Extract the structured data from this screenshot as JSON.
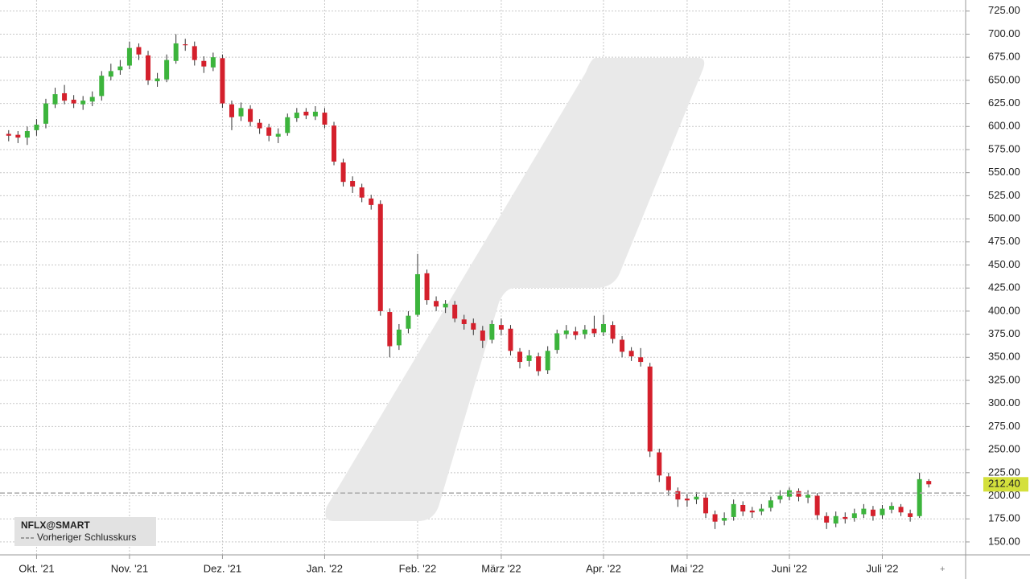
{
  "chart_data": {
    "type": "candlestick",
    "symbol": "NFLX@SMART",
    "legend_label": "Vorheriger Schlusskurs",
    "up_color": "#3cb43c",
    "down_color": "#d4202c",
    "grid": true,
    "previous_close": 203,
    "price_marker": {
      "value": 212.4,
      "label": "212.40"
    },
    "ylim": [
      136,
      737
    ],
    "yticks": [
      {
        "value": 150,
        "label": "150.00"
      },
      {
        "value": 175,
        "label": "175.00"
      },
      {
        "value": 200,
        "label": "200.00"
      },
      {
        "value": 225,
        "label": "225.00"
      },
      {
        "value": 250,
        "label": "250.00"
      },
      {
        "value": 275,
        "label": "275.00"
      },
      {
        "value": 300,
        "label": "300.00"
      },
      {
        "value": 325,
        "label": "325.00"
      },
      {
        "value": 350,
        "label": "350.00"
      },
      {
        "value": 375,
        "label": "375.00"
      },
      {
        "value": 400,
        "label": "400.00"
      },
      {
        "value": 425,
        "label": "425.00"
      },
      {
        "value": 450,
        "label": "450.00"
      },
      {
        "value": 475,
        "label": "475.00"
      },
      {
        "value": 500,
        "label": "500.00"
      },
      {
        "value": 525,
        "label": "525.00"
      },
      {
        "value": 550,
        "label": "550.00"
      },
      {
        "value": 575,
        "label": "575.00"
      },
      {
        "value": 600,
        "label": "600.00"
      },
      {
        "value": 625,
        "label": "625.00"
      },
      {
        "value": 650,
        "label": "650.00"
      },
      {
        "value": 675,
        "label": "675.00"
      },
      {
        "value": 700,
        "label": "700.00"
      },
      {
        "value": 725,
        "label": "725.00"
      }
    ],
    "categories": [
      null,
      null,
      null,
      "Okt. '21",
      null,
      null,
      null,
      null,
      null,
      null,
      null,
      null,
      null,
      "Nov. '21",
      null,
      null,
      null,
      null,
      null,
      null,
      null,
      null,
      null,
      "Dez. '21",
      null,
      null,
      null,
      null,
      null,
      null,
      null,
      null,
      null,
      null,
      "Jan. '22",
      null,
      null,
      null,
      null,
      null,
      null,
      null,
      null,
      null,
      "Feb. '22",
      null,
      null,
      null,
      null,
      null,
      null,
      null,
      null,
      "März '22",
      null,
      null,
      null,
      null,
      null,
      null,
      null,
      null,
      null,
      null,
      "Apr. '22",
      null,
      null,
      null,
      null,
      null,
      null,
      null,
      null,
      "Mai '22",
      null,
      null,
      null,
      null,
      null,
      null,
      null,
      null,
      null,
      null,
      "Juni '22",
      null,
      null,
      null,
      null,
      null,
      null,
      null,
      null,
      null,
      "Juli '22",
      null,
      null,
      null,
      null,
      null
    ],
    "open": [
      592,
      591,
      588,
      596,
      603,
      624,
      636,
      629,
      624,
      627,
      633,
      654,
      661,
      666,
      686,
      677,
      649,
      651,
      671,
      689,
      687,
      671,
      664,
      674,
      624,
      611,
      619,
      604,
      599,
      589,
      593,
      609,
      616,
      611,
      615,
      601,
      561,
      541,
      534,
      522,
      516,
      399,
      363,
      381,
      396,
      441,
      411,
      404,
      407,
      391,
      387,
      379,
      369,
      385,
      381,
      356,
      346,
      351,
      336,
      358,
      375,
      378,
      375,
      381,
      377,
      385,
      369,
      357,
      350,
      340,
      247,
      221,
      205,
      197,
      196,
      198,
      180,
      173,
      177,
      190,
      184,
      183,
      187,
      196,
      199,
      205,
      198,
      200,
      178,
      170,
      177,
      176,
      180,
      185,
      179,
      185,
      188,
      181,
      178,
      216
    ],
    "high": [
      596,
      595,
      600,
      608,
      630,
      642,
      645,
      634,
      633,
      638,
      660,
      668,
      672,
      692,
      690,
      682,
      658,
      678,
      700,
      695,
      692,
      676,
      680,
      678,
      628,
      626,
      623,
      608,
      603,
      598,
      614,
      620,
      620,
      622,
      620,
      605,
      565,
      546,
      538,
      526,
      520,
      403,
      386,
      400,
      462,
      445,
      416,
      412,
      411,
      396,
      392,
      384,
      390,
      392,
      385,
      360,
      358,
      355,
      362,
      380,
      385,
      383,
      385,
      395,
      396,
      389,
      373,
      361,
      360,
      344,
      251,
      225,
      209,
      202,
      204,
      202,
      184,
      182,
      196,
      194,
      188,
      191,
      199,
      206,
      209,
      208,
      206,
      203,
      182,
      183,
      182,
      186,
      191,
      189,
      190,
      193,
      191,
      185,
      225,
      218
    ],
    "low": [
      584,
      582,
      580,
      590,
      598,
      620,
      624,
      620,
      618,
      622,
      628,
      650,
      656,
      662,
      672,
      645,
      643,
      648,
      668,
      682,
      666,
      658,
      660,
      620,
      596,
      606,
      600,
      592,
      584,
      582,
      590,
      605,
      608,
      607,
      598,
      558,
      535,
      528,
      518,
      510,
      395,
      350,
      358,
      376,
      394,
      407,
      400,
      398,
      388,
      380,
      374,
      360,
      365,
      374,
      352,
      338,
      340,
      330,
      332,
      354,
      370,
      369,
      370,
      372,
      373,
      365,
      350,
      346,
      340,
      242,
      215,
      200,
      188,
      188,
      191,
      176,
      164,
      168,
      173,
      178,
      176,
      179,
      183,
      192,
      195,
      194,
      192,
      174,
      164,
      166,
      170,
      172,
      176,
      173,
      175,
      181,
      178,
      172,
      176,
      209
    ],
    "close": [
      590,
      588,
      595,
      602,
      625,
      635,
      628,
      625,
      628,
      632,
      655,
      660,
      665,
      685,
      678,
      650,
      652,
      672,
      690,
      688,
      672,
      665,
      675,
      625,
      610,
      620,
      605,
      598,
      590,
      592,
      610,
      615,
      612,
      616,
      602,
      562,
      540,
      535,
      523,
      515,
      400,
      362,
      380,
      395,
      440,
      412,
      405,
      408,
      392,
      386,
      380,
      368,
      386,
      380,
      357,
      345,
      352,
      335,
      357,
      376,
      379,
      374,
      380,
      376,
      386,
      370,
      356,
      351,
      345,
      248,
      222,
      206,
      196,
      195,
      199,
      181,
      172,
      176,
      191,
      183,
      182,
      186,
      195,
      200,
      206,
      199,
      201,
      179,
      171,
      178,
      175,
      181,
      186,
      178,
      186,
      189,
      182,
      177,
      218,
      212.4
    ]
  }
}
